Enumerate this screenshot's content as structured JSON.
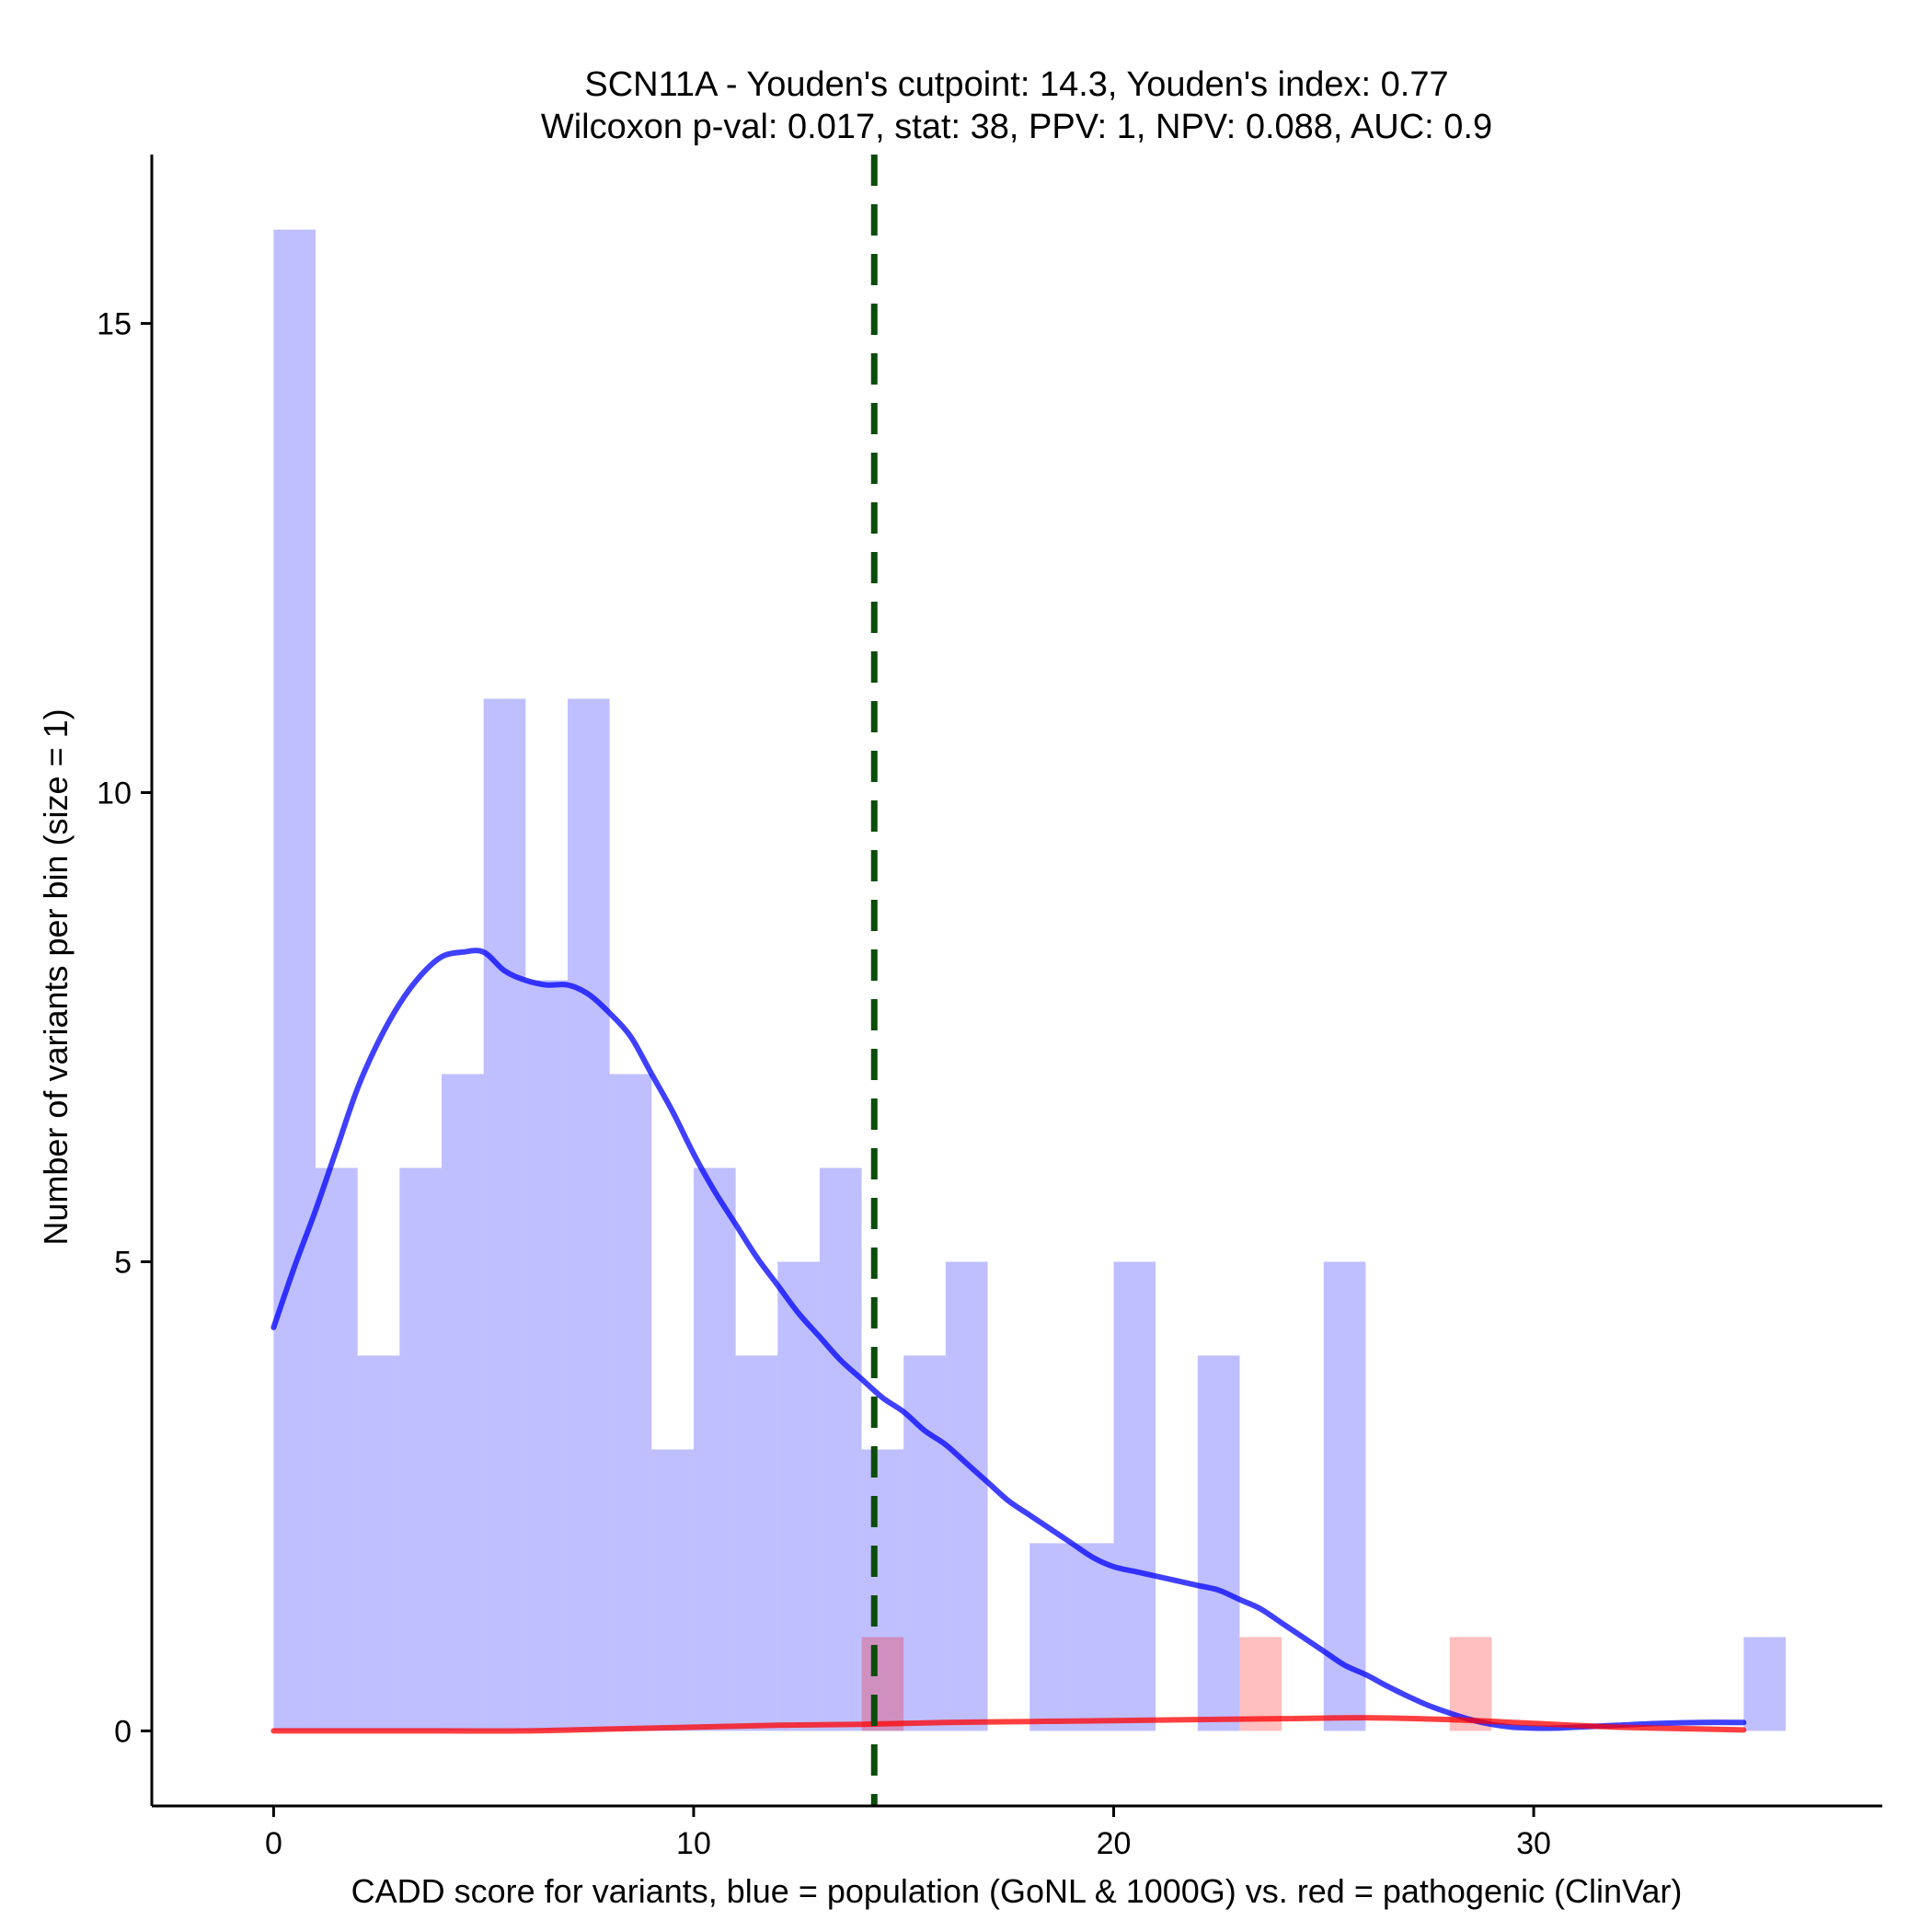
{
  "chart_data": {
    "type": "bar",
    "title": "SCN11A - Youden's cutpoint: 14.3, Youden's index: 0.77",
    "subtitle": "Wilcoxon p-val: 0.017, stat: 38, PPV: 1, NPV: 0.088, AUC: 0.9",
    "xlabel": "CADD score for variants, blue = population (GoNL & 1000G) vs. red = pathogenic (ClinVar)",
    "ylabel": "Number of variants per bin (size = 1)",
    "xlim": [
      -2.9,
      38.3
    ],
    "ylim": [
      -0.8,
      16.8
    ],
    "xticks": [
      0,
      10,
      20,
      30
    ],
    "yticks": [
      0,
      5,
      10,
      15
    ],
    "bin_size": 1,
    "cutpoint": 14.3,
    "series": [
      {
        "name": "population (GoNL & 1000G)",
        "color": "#0000ff",
        "bins": [
          {
            "x0": 0,
            "count": 16
          },
          {
            "x0": 1,
            "count": 6
          },
          {
            "x0": 2,
            "count": 4
          },
          {
            "x0": 3,
            "count": 6
          },
          {
            "x0": 4,
            "count": 7
          },
          {
            "x0": 5,
            "count": 11
          },
          {
            "x0": 6,
            "count": 8
          },
          {
            "x0": 7,
            "count": 11
          },
          {
            "x0": 8,
            "count": 7
          },
          {
            "x0": 9,
            "count": 3
          },
          {
            "x0": 10,
            "count": 6
          },
          {
            "x0": 11,
            "count": 4
          },
          {
            "x0": 12,
            "count": 5
          },
          {
            "x0": 13,
            "count": 6
          },
          {
            "x0": 14,
            "count": 3
          },
          {
            "x0": 15,
            "count": 4
          },
          {
            "x0": 16,
            "count": 5
          },
          {
            "x0": 18,
            "count": 2
          },
          {
            "x0": 19,
            "count": 2
          },
          {
            "x0": 20,
            "count": 5
          },
          {
            "x0": 22,
            "count": 4
          },
          {
            "x0": 25,
            "count": 5
          },
          {
            "x0": 35,
            "count": 1
          }
        ],
        "density": [
          [
            0,
            4.3
          ],
          [
            0.5,
            4.95
          ],
          [
            1,
            5.55
          ],
          [
            1.5,
            6.2
          ],
          [
            2,
            6.85
          ],
          [
            2.5,
            7.35
          ],
          [
            3,
            7.75
          ],
          [
            3.5,
            8.05
          ],
          [
            4,
            8.25
          ],
          [
            4.5,
            8.3
          ],
          [
            5,
            8.3
          ],
          [
            5.5,
            8.1
          ],
          [
            6,
            8.0
          ],
          [
            6.5,
            7.95
          ],
          [
            7,
            7.95
          ],
          [
            7.5,
            7.85
          ],
          [
            8,
            7.65
          ],
          [
            8.5,
            7.4
          ],
          [
            9,
            7.0
          ],
          [
            9.5,
            6.6
          ],
          [
            10,
            6.15
          ],
          [
            10.5,
            5.75
          ],
          [
            11,
            5.4
          ],
          [
            11.5,
            5.05
          ],
          [
            12,
            4.75
          ],
          [
            12.5,
            4.45
          ],
          [
            13,
            4.2
          ],
          [
            13.5,
            3.95
          ],
          [
            14,
            3.75
          ],
          [
            14.5,
            3.55
          ],
          [
            15,
            3.4
          ],
          [
            15.5,
            3.2
          ],
          [
            16,
            3.05
          ],
          [
            16.5,
            2.85
          ],
          [
            17,
            2.65
          ],
          [
            17.5,
            2.45
          ],
          [
            18,
            2.3
          ],
          [
            18.5,
            2.15
          ],
          [
            19,
            2.0
          ],
          [
            19.5,
            1.85
          ],
          [
            20,
            1.75
          ],
          [
            20.5,
            1.7
          ],
          [
            21,
            1.65
          ],
          [
            21.5,
            1.6
          ],
          [
            22,
            1.55
          ],
          [
            22.5,
            1.5
          ],
          [
            23,
            1.4
          ],
          [
            23.5,
            1.3
          ],
          [
            24,
            1.15
          ],
          [
            24.5,
            1.0
          ],
          [
            25,
            0.85
          ],
          [
            25.5,
            0.7
          ],
          [
            26,
            0.6
          ],
          [
            26.5,
            0.48
          ],
          [
            27,
            0.37
          ],
          [
            27.5,
            0.27
          ],
          [
            28,
            0.19
          ],
          [
            28.5,
            0.12
          ],
          [
            29,
            0.07
          ],
          [
            29.5,
            0.04
          ],
          [
            30,
            0.03
          ],
          [
            30.5,
            0.03
          ],
          [
            31,
            0.04
          ],
          [
            32,
            0.06
          ],
          [
            33,
            0.08
          ],
          [
            34,
            0.09
          ],
          [
            35,
            0.09
          ]
        ]
      },
      {
        "name": "pathogenic (ClinVar)",
        "color": "#ff0000",
        "bins": [
          {
            "x0": 14,
            "count": 1
          },
          {
            "x0": 23,
            "count": 1
          },
          {
            "x0": 28,
            "count": 1
          }
        ],
        "density": [
          [
            0,
            0.0
          ],
          [
            2,
            0.0
          ],
          [
            4,
            0.0
          ],
          [
            6,
            0.0
          ],
          [
            8,
            0.02
          ],
          [
            10,
            0.04
          ],
          [
            12,
            0.06
          ],
          [
            14,
            0.07
          ],
          [
            16,
            0.09
          ],
          [
            18,
            0.1
          ],
          [
            20,
            0.11
          ],
          [
            22,
            0.12
          ],
          [
            24,
            0.13
          ],
          [
            26,
            0.14
          ],
          [
            28,
            0.12
          ],
          [
            30,
            0.08
          ],
          [
            32,
            0.04
          ],
          [
            34,
            0.02
          ],
          [
            35,
            0.01
          ]
        ]
      }
    ]
  }
}
